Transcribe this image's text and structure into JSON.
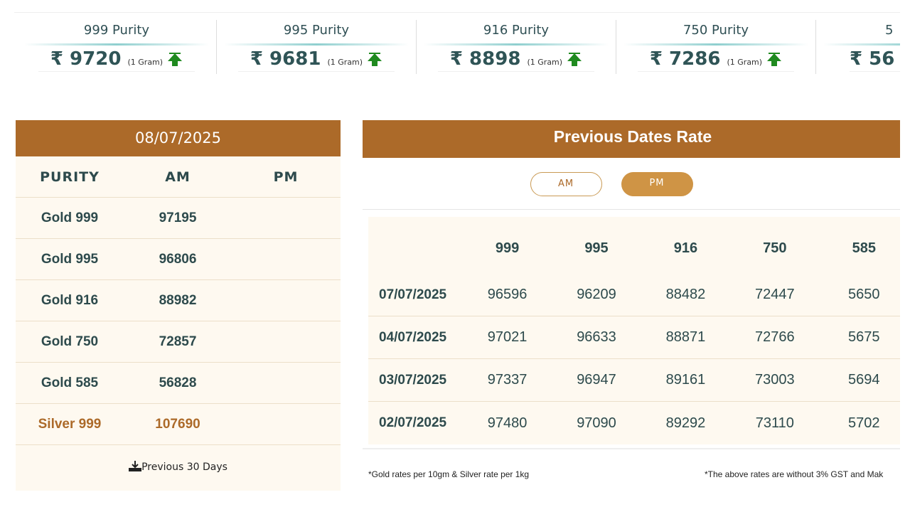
{
  "cards": [
    {
      "title": "999 Purity",
      "price": "₹ 9720",
      "unit": "(1 Gram)",
      "trend": "up-arrow-icon"
    },
    {
      "title": "995 Purity",
      "price": "₹ 9681",
      "unit": "(1 Gram)",
      "trend": "up-arrow-icon"
    },
    {
      "title": "916 Purity",
      "price": "₹ 8898",
      "unit": "(1 Gram)",
      "trend": "up-arrow-icon"
    },
    {
      "title": "750 Purity",
      "price": "₹ 7286",
      "unit": "(1 Gram)",
      "trend": "up-arrow-icon"
    },
    {
      "title": "5",
      "price": "₹ 56",
      "unit": "",
      "trend": ""
    }
  ],
  "today": {
    "date": "08/07/2025",
    "headers": [
      "PURITY",
      "AM",
      "PM"
    ],
    "rows": [
      [
        "Gold 999",
        "97195",
        ""
      ],
      [
        "Gold 995",
        "96806",
        ""
      ],
      [
        "Gold 916",
        "88982",
        ""
      ],
      [
        "Gold 750",
        "72857",
        ""
      ],
      [
        "Gold 585",
        "56828",
        ""
      ],
      [
        "Silver 999",
        "107690",
        ""
      ]
    ],
    "previous_link": "Previous 30 Days"
  },
  "previous": {
    "title": "Previous Dates Rate",
    "toggle": {
      "am": "AM",
      "pm": "PM",
      "selected": "PM"
    },
    "headers": [
      "",
      "999",
      "995",
      "916",
      "750",
      "585"
    ],
    "rows": [
      [
        "07/07/2025",
        "96596",
        "96209",
        "88482",
        "72447",
        "5650"
      ],
      [
        "04/07/2025",
        "97021",
        "96633",
        "88871",
        "72766",
        "5675"
      ],
      [
        "03/07/2025",
        "97337",
        "96947",
        "89161",
        "73003",
        "5694"
      ],
      [
        "02/07/2025",
        "97480",
        "97090",
        "89292",
        "73110",
        "5702"
      ]
    ]
  },
  "footnotes": {
    "left": "*Gold rates per 10gm & Silver rate per 1kg",
    "right": "*The above rates are without 3% GST and Mak"
  },
  "colors": {
    "accent": "#ac6a29",
    "text": "#2d4a4c",
    "panel": "#fef9f0",
    "up": "#1f8a1f"
  }
}
